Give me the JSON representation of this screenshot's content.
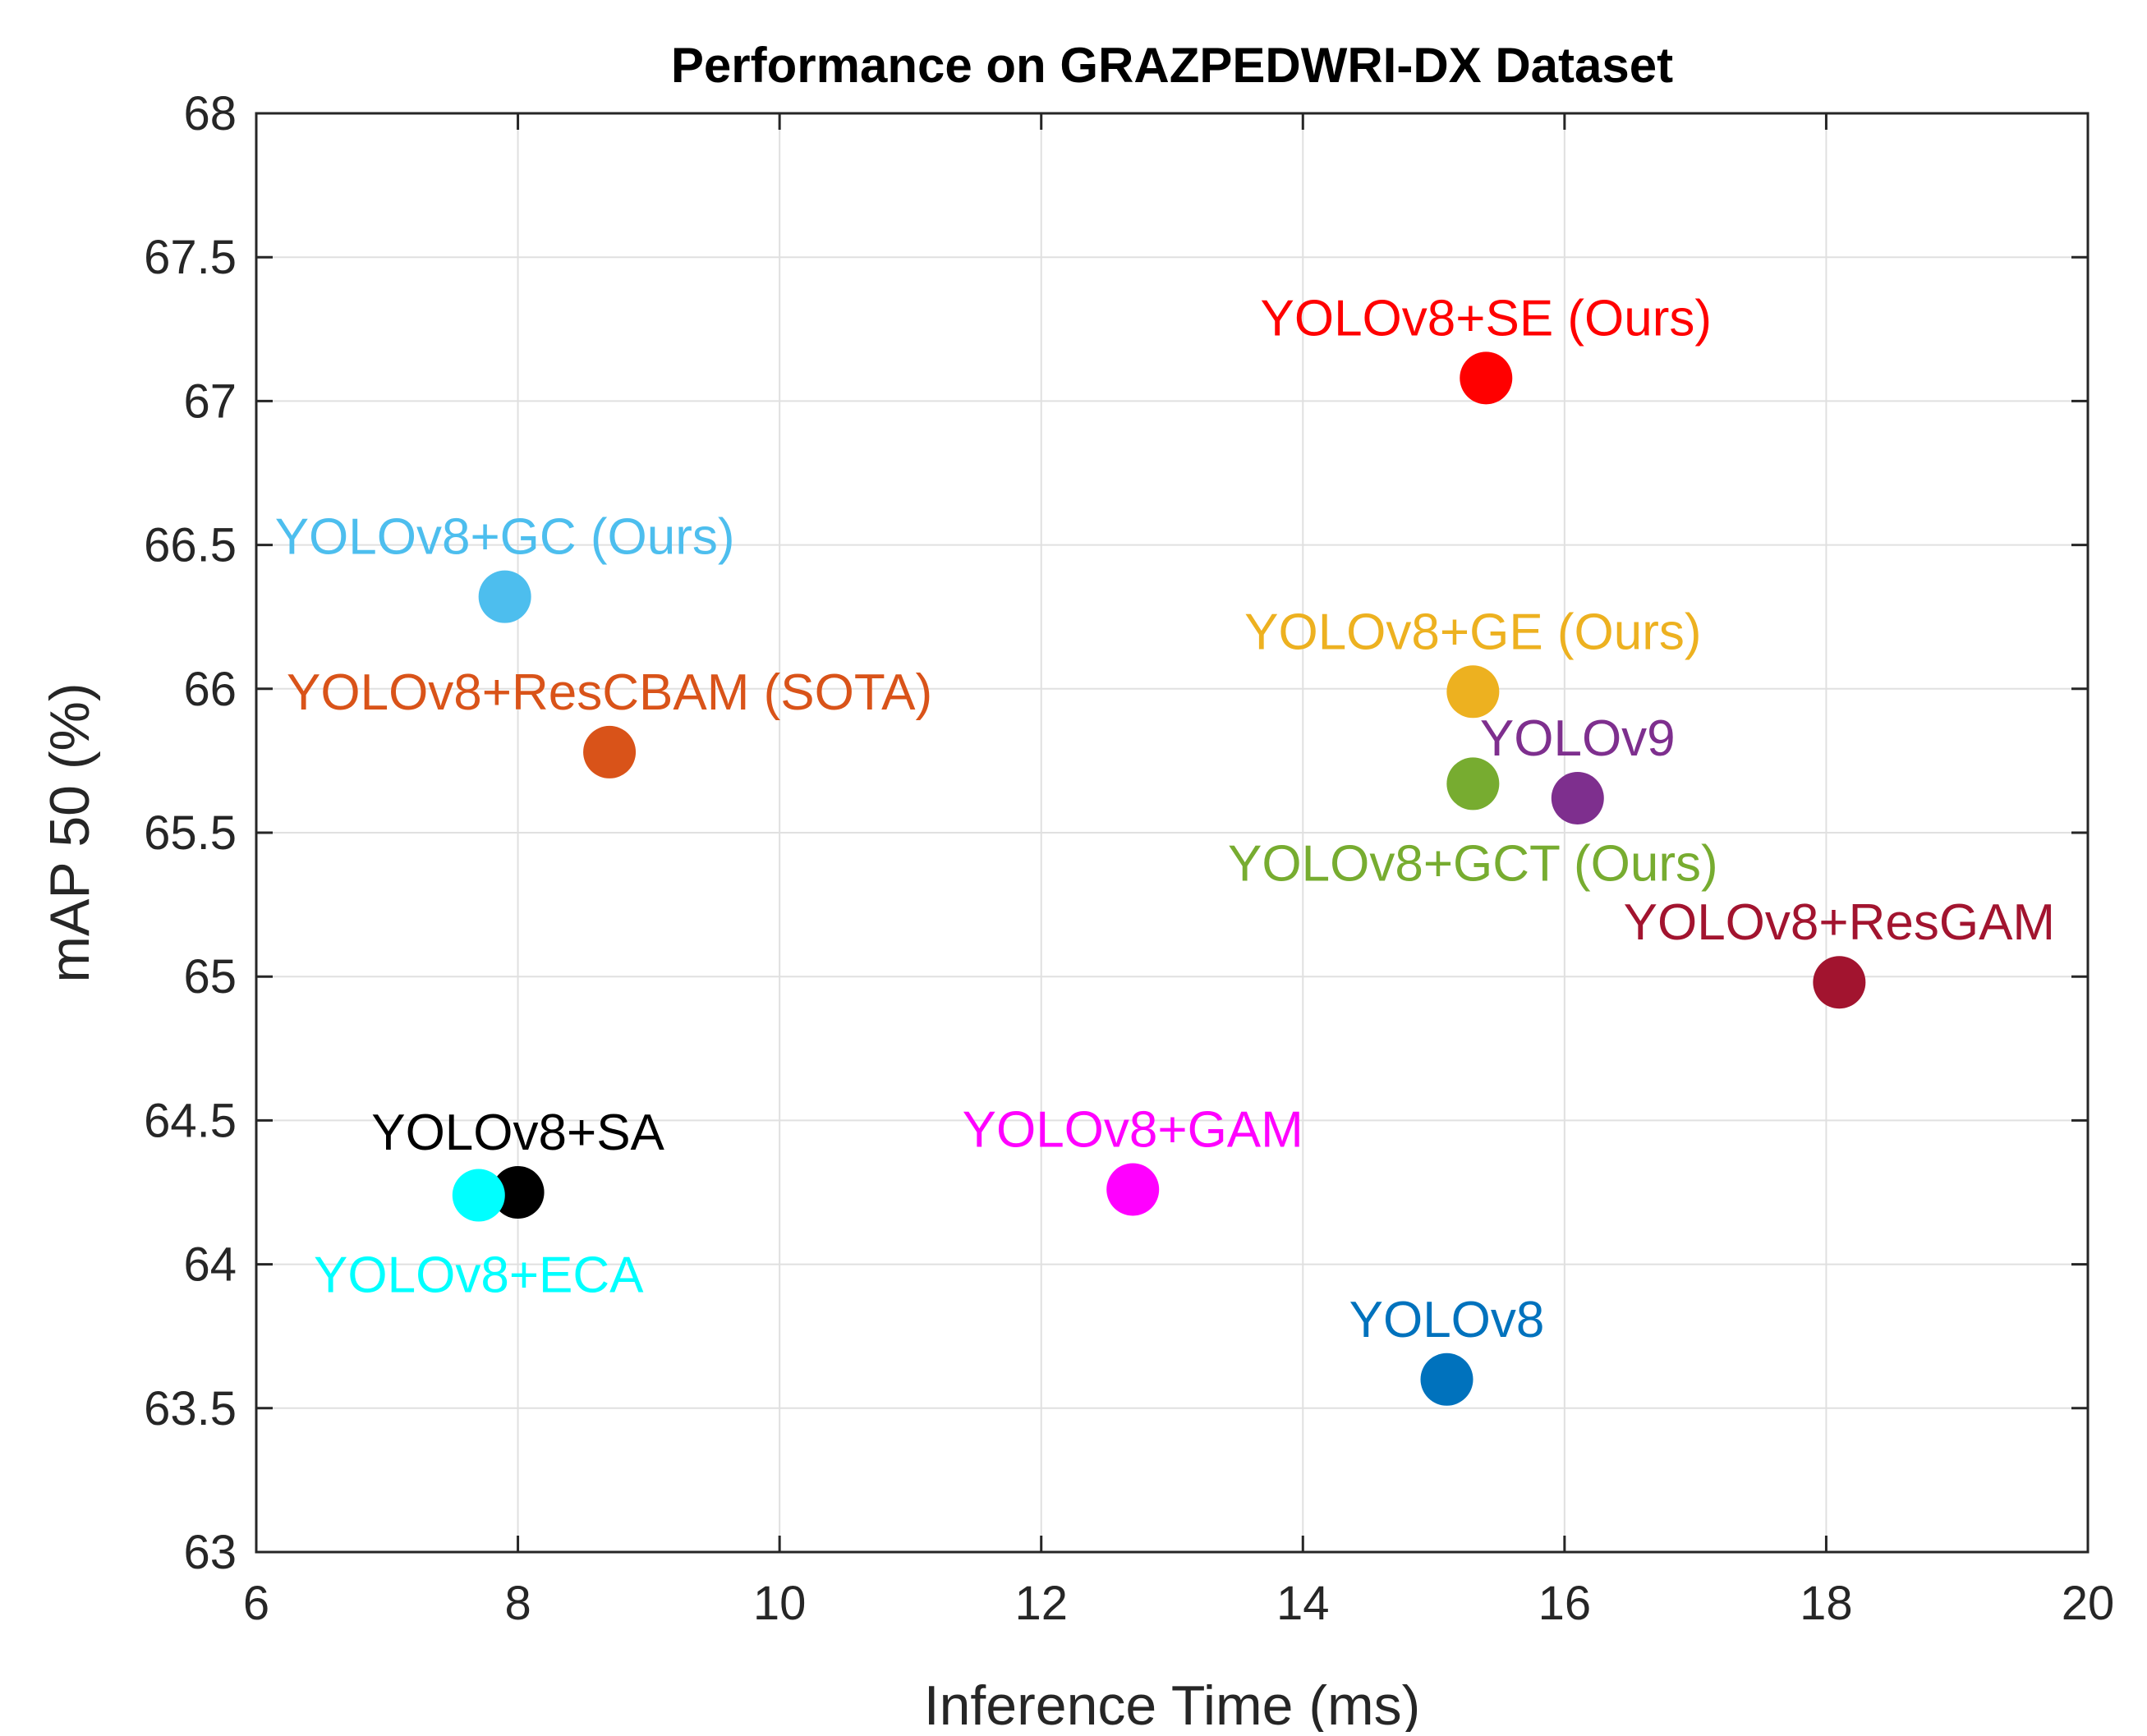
{
  "chart_data": {
    "type": "scatter",
    "title": "Performance on GRAZPEDWRI-DX Dataset",
    "xlabel": "Inference Time (ms)",
    "ylabel": "mAP 50 (%)",
    "xlim": [
      6,
      20
    ],
    "ylim": [
      63,
      68
    ],
    "xticks": [
      "6",
      "8",
      "10",
      "12",
      "14",
      "16",
      "18",
      "20"
    ],
    "yticks": [
      "63",
      "63.5",
      "64",
      "64.5",
      "65",
      "65.5",
      "66",
      "66.5",
      "67",
      "67.5",
      "68"
    ],
    "grid": true,
    "points": [
      {
        "label": "YOLOv8+SE (Ours)",
        "x": 15.4,
        "y": 67.08,
        "color": "#ff0000",
        "label_pos": "above"
      },
      {
        "label": "YOLOv8+GC (Ours)",
        "x": 7.9,
        "y": 66.32,
        "color": "#4dbeee",
        "label_pos": "above"
      },
      {
        "label": "YOLOv8+GE (Ours)",
        "x": 15.3,
        "y": 65.99,
        "color": "#edb120",
        "label_pos": "above"
      },
      {
        "label": "YOLOv8+ResCBAM (SOTA)",
        "x": 8.7,
        "y": 65.78,
        "color": "#d95319",
        "label_pos": "above"
      },
      {
        "label": "YOLOv9",
        "x": 16.1,
        "y": 65.62,
        "color": "#7e2f8e",
        "label_pos": "above"
      },
      {
        "label": "YOLOv8+GCT (Ours)",
        "x": 15.3,
        "y": 65.67,
        "color": "#77ac30",
        "label_pos": "below"
      },
      {
        "label": "YOLOv8+ResGAM",
        "x": 18.1,
        "y": 64.98,
        "color": "#a2142f",
        "label_pos": "above"
      },
      {
        "label": "YOLOv8+SA",
        "x": 8.0,
        "y": 64.25,
        "color": "#000000",
        "label_pos": "above"
      },
      {
        "label": "YOLOv8+ECA",
        "x": 7.7,
        "y": 64.24,
        "color": "#00ffff",
        "label_pos": "below"
      },
      {
        "label": "YOLOv8+GAM",
        "x": 12.7,
        "y": 64.26,
        "color": "#ff00ff",
        "label_pos": "above"
      },
      {
        "label": "YOLOv8",
        "x": 15.1,
        "y": 63.6,
        "color": "#0072bd",
        "label_pos": "above"
      }
    ]
  }
}
